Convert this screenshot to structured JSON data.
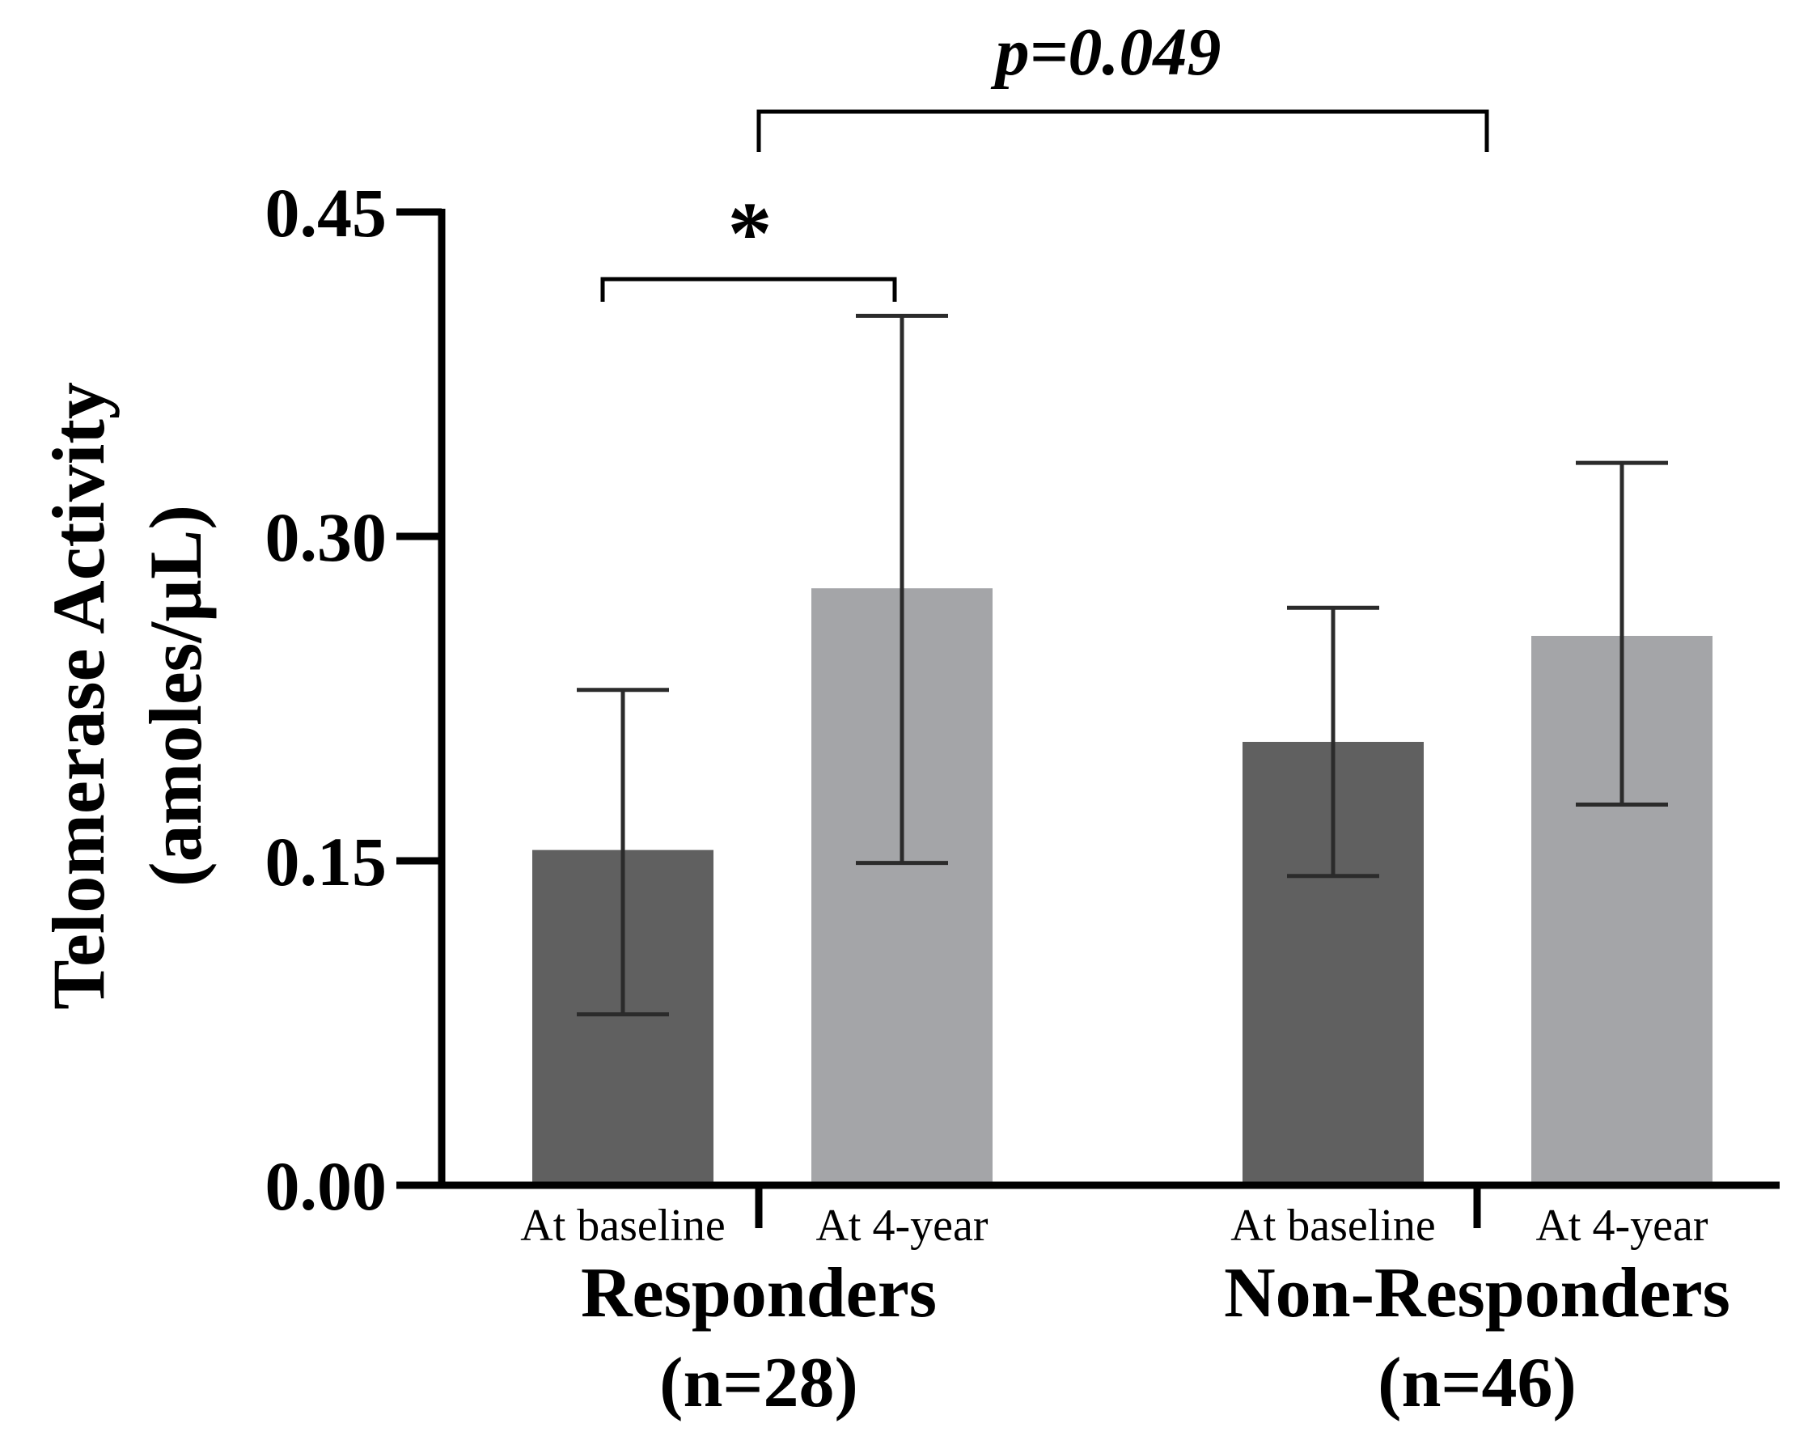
{
  "chart_data": {
    "type": "bar",
    "ylabel_line1": "Telomerase Activity",
    "ylabel_line2": "(amoles/µL)",
    "ylim": [
      0,
      0.45
    ],
    "yticks": [
      "0.00",
      "0.15",
      "0.30",
      "0.45"
    ],
    "tick_values": [
      0,
      0.15,
      0.3,
      0.45
    ],
    "bar_colors": {
      "baseline": "#606060",
      "four_year": "#a4a5a8"
    },
    "groups": [
      {
        "name": "Responders",
        "n_label": "(n=28)",
        "bars": [
          {
            "label": "At baseline",
            "value": 0.155,
            "err_low": 0.079,
            "err_high": 0.229
          },
          {
            "label": "At 4-year",
            "value": 0.276,
            "err_low": 0.149,
            "err_high": 0.402
          }
        ]
      },
      {
        "name": "Non-Responders",
        "n_label": "(n=46)",
        "bars": [
          {
            "label": "At baseline",
            "value": 0.205,
            "err_low": 0.143,
            "err_high": 0.267
          },
          {
            "label": "At 4-year",
            "value": 0.254,
            "err_low": 0.176,
            "err_high": 0.334
          }
        ]
      }
    ],
    "annotations": {
      "within_group": "*",
      "between_group": "p=0.049"
    }
  }
}
